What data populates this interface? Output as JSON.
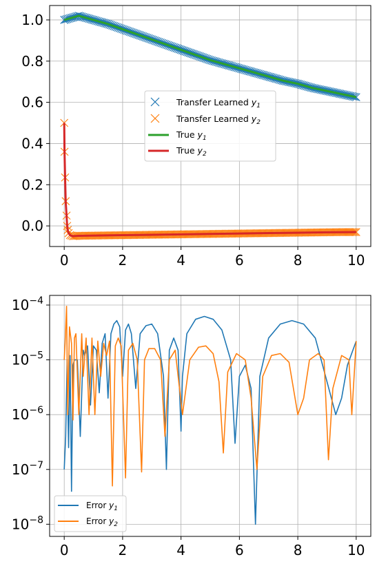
{
  "chart_data": [
    {
      "type": "line",
      "xlim": [
        -0.5,
        10.5
      ],
      "ylim": [
        -0.1,
        1.07
      ],
      "x_ticks": [
        0,
        2,
        4,
        6,
        8,
        10
      ],
      "x_tick_labels": [
        "0",
        "2",
        "4",
        "6",
        "8",
        "10"
      ],
      "y_ticks": [
        0.0,
        0.2,
        0.4,
        0.6,
        0.8,
        1.0
      ],
      "y_tick_labels": [
        "0.0",
        "0.2",
        "0.4",
        "0.6",
        "0.8",
        "1.0"
      ],
      "grid": true,
      "legend_position": "center-right",
      "series": [
        {
          "name_text": "Transfer Learned ",
          "name_var": "y",
          "name_sub": "1",
          "style": "x-markers",
          "color": "#1f77b4",
          "x": [
            0,
            0.5,
            1,
            1.5,
            2,
            2.5,
            3,
            3.5,
            4,
            4.5,
            5,
            5.5,
            6,
            6.5,
            7,
            7.5,
            8,
            8.5,
            9,
            9.5,
            10
          ],
          "y": [
            1.0,
            1.02,
            1.0,
            0.98,
            0.955,
            0.93,
            0.905,
            0.88,
            0.855,
            0.83,
            0.805,
            0.785,
            0.765,
            0.745,
            0.725,
            0.705,
            0.69,
            0.67,
            0.655,
            0.64,
            0.625
          ]
        },
        {
          "name_text": "Transfer Learned ",
          "name_var": "y",
          "name_sub": "2",
          "style": "x-markers",
          "color": "#ff7f0e",
          "x": [
            0,
            0.01,
            0.03,
            0.05,
            0.08,
            0.1,
            0.12,
            0.15,
            0.2,
            0.3,
            0.5,
            1,
            1.5,
            2,
            2.5,
            3,
            3.5,
            4,
            4.5,
            5,
            5.5,
            6,
            6.5,
            7,
            7.5,
            8,
            8.5,
            9,
            9.5,
            10
          ],
          "y": [
            0.5,
            0.36,
            0.235,
            0.12,
            0.05,
            0.0,
            -0.02,
            -0.035,
            -0.045,
            -0.05,
            -0.048,
            -0.047,
            -0.046,
            -0.045,
            -0.044,
            -0.043,
            -0.042,
            -0.041,
            -0.04,
            -0.039,
            -0.038,
            -0.037,
            -0.036,
            -0.035,
            -0.034,
            -0.033,
            -0.032,
            -0.031,
            -0.03,
            -0.03
          ]
        },
        {
          "name_text": "True ",
          "name_var": "y",
          "name_sub": "1",
          "style": "line",
          "color": "#2ca02c",
          "x": [
            0,
            0.5,
            1,
            1.5,
            2,
            2.5,
            3,
            3.5,
            4,
            4.5,
            5,
            5.5,
            6,
            6.5,
            7,
            7.5,
            8,
            8.5,
            9,
            9.5,
            10
          ],
          "y": [
            1.0,
            1.02,
            1.0,
            0.98,
            0.955,
            0.93,
            0.905,
            0.88,
            0.855,
            0.83,
            0.805,
            0.785,
            0.765,
            0.745,
            0.725,
            0.705,
            0.69,
            0.67,
            0.655,
            0.64,
            0.625
          ]
        },
        {
          "name_text": "True ",
          "name_var": "y",
          "name_sub": "2",
          "style": "line",
          "color": "#d62728",
          "x": [
            0,
            0.01,
            0.03,
            0.05,
            0.08,
            0.1,
            0.12,
            0.15,
            0.2,
            0.3,
            0.5,
            1,
            2,
            3,
            4,
            5,
            6,
            7,
            8,
            9,
            10
          ],
          "y": [
            0.5,
            0.36,
            0.235,
            0.12,
            0.05,
            0.0,
            -0.02,
            -0.035,
            -0.045,
            -0.05,
            -0.048,
            -0.047,
            -0.045,
            -0.043,
            -0.041,
            -0.039,
            -0.037,
            -0.035,
            -0.033,
            -0.031,
            -0.03
          ]
        }
      ]
    },
    {
      "type": "line",
      "yscale": "log",
      "xlim": [
        -0.5,
        10.5
      ],
      "ylim": [
        6e-09,
        0.00015
      ],
      "x_ticks": [
        0,
        2,
        4,
        6,
        8,
        10
      ],
      "x_tick_labels": [
        "0",
        "2",
        "4",
        "6",
        "8",
        "10"
      ],
      "y_ticks": [
        1e-08,
        1e-07,
        1e-06,
        1e-05,
        0.0001
      ],
      "y_tick_labels": [
        {
          "base": "10",
          "exp": "−8"
        },
        {
          "base": "10",
          "exp": "−7"
        },
        {
          "base": "10",
          "exp": "−6"
        },
        {
          "base": "10",
          "exp": "−5"
        },
        {
          "base": "10",
          "exp": "−4"
        }
      ],
      "grid": true,
      "legend_position": "lower-left",
      "series": [
        {
          "name_text": "Error ",
          "name_var": "y",
          "name_sub": "1",
          "style": "line",
          "color": "#1f77b4",
          "x": [
            0,
            0.05,
            0.1,
            0.12,
            0.15,
            0.2,
            0.25,
            0.3,
            0.35,
            0.45,
            0.55,
            0.65,
            0.7,
            0.8,
            0.9,
            1.0,
            1.1,
            1.2,
            1.3,
            1.4,
            1.5,
            1.6,
            1.7,
            1.8,
            1.9,
            2.0,
            2.1,
            2.2,
            2.3,
            2.45,
            2.6,
            2.8,
            3.0,
            3.2,
            3.4,
            3.5,
            3.6,
            3.75,
            3.9,
            4.0,
            4.05,
            4.2,
            4.5,
            4.8,
            5.1,
            5.4,
            5.7,
            5.85,
            6.0,
            6.2,
            6.4,
            6.55,
            6.7,
            7.0,
            7.4,
            7.8,
            8.2,
            8.6,
            9.0,
            9.3,
            9.5,
            9.7,
            10.0
          ],
          "y": [
            1e-07,
            4e-07,
            1e-05,
            2e-06,
            2.5e-07,
            1.2e-05,
            4e-08,
            8e-06,
            1e-05,
            1e-05,
            4e-07,
            1.5e-05,
            1.2e-05,
            1.8e-05,
            1.5e-06,
            1.8e-05,
            1.5e-05,
            2.5e-06,
            2e-05,
            3e-05,
            2e-06,
            3e-05,
            4.5e-05,
            5.2e-05,
            4e-05,
            5e-06,
            3.5e-05,
            4.5e-05,
            3e-05,
            3e-06,
            3e-05,
            4.2e-05,
            4.5e-05,
            3e-05,
            5e-06,
            1e-07,
            1.5e-05,
            2.5e-05,
            1.5e-05,
            5e-07,
            5e-06,
            3e-05,
            5.5e-05,
            6.2e-05,
            5.5e-05,
            3.5e-05,
            1e-05,
            3e-07,
            5e-06,
            8e-06,
            3e-06,
            1e-08,
            5e-06,
            2.5e-05,
            4.5e-05,
            5.2e-05,
            4.5e-05,
            2.5e-05,
            4e-06,
            1e-06,
            2e-06,
            8e-06,
            2.2e-05
          ]
        },
        {
          "name_text": "Error ",
          "name_var": "y",
          "name_sub": "2",
          "style": "line",
          "color": "#ff7f0e",
          "x": [
            0,
            0.03,
            0.08,
            0.12,
            0.18,
            0.25,
            0.3,
            0.35,
            0.4,
            0.5,
            0.6,
            0.65,
            0.75,
            0.85,
            0.95,
            1.05,
            1.15,
            1.25,
            1.35,
            1.45,
            1.55,
            1.65,
            1.75,
            1.85,
            1.95,
            2.1,
            2.2,
            2.35,
            2.5,
            2.65,
            2.75,
            2.9,
            3.1,
            3.3,
            3.45,
            3.6,
            3.8,
            4.05,
            4.3,
            4.6,
            4.85,
            5.1,
            5.3,
            5.45,
            5.6,
            5.9,
            6.2,
            6.4,
            6.6,
            6.8,
            7.1,
            7.4,
            7.7,
            8.0,
            8.2,
            8.4,
            8.7,
            8.9,
            9.05,
            9.2,
            9.5,
            9.75,
            9.85,
            10.0
          ],
          "y": [
            1e-05,
            2e-05,
            9.5e-05,
            1e-06,
            4e-05,
            2e-05,
            8e-07,
            2.5e-05,
            3e-05,
            1e-06,
            3e-05,
            5e-06,
            2.5e-05,
            1e-06,
            2.5e-05,
            1e-06,
            2.2e-05,
            5e-06,
            2e-05,
            1.2e-05,
            2.2e-05,
            5e-08,
            1.8e-05,
            2.5e-05,
            1.8e-05,
            7e-08,
            1.5e-05,
            2e-05,
            1e-05,
            9e-08,
            1e-05,
            1.6e-05,
            1.6e-05,
            1e-05,
            4e-07,
            1e-05,
            1.5e-05,
            1e-06,
            1e-05,
            1.7e-05,
            1.8e-05,
            1.3e-05,
            4e-06,
            2e-07,
            6e-06,
            1.3e-05,
            1e-05,
            2e-06,
            1e-07,
            5e-06,
            1.2e-05,
            1.3e-05,
            9e-06,
            1e-06,
            2e-06,
            1e-05,
            1.3e-05,
            1e-05,
            1.5e-07,
            3e-06,
            1.2e-05,
            1e-05,
            1e-06,
            2.2e-05
          ]
        }
      ]
    }
  ]
}
